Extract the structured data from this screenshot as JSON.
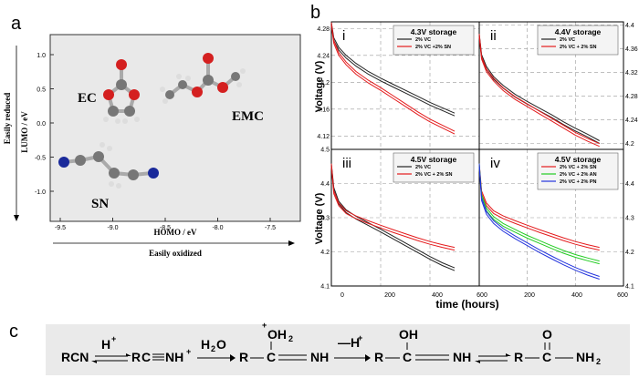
{
  "panel_a": {
    "label": "a",
    "y_axis_title": "LUMO / eV",
    "x_axis_title": "HOMO / eV",
    "y_arrow_label": "Easily reduced",
    "x_arrow_label": "Easily oxidized",
    "y_ticks": [
      "1.0",
      "0.5",
      "0.0",
      "-0.5",
      "-1.0"
    ],
    "x_ticks": [
      "-9.5",
      "-9.0",
      "-8.5",
      "-8.0",
      "-7.5"
    ],
    "molecules": [
      "EC",
      "EMC",
      "SN"
    ]
  },
  "panel_b": {
    "label": "b",
    "y_axis_title": "Voltage (V)",
    "x_axis_title": "time (hours)",
    "x_ticks": [
      "0",
      "200",
      "400",
      "600",
      "200",
      "400",
      "600"
    ]
  },
  "panel_c": {
    "label": "c",
    "scheme": {
      "rcn": "RCN",
      "h_plus": "H",
      "plus": "+",
      "minus_h_plus": "—H",
      "h2o": "H",
      "h2o_2": "2",
      "h2o_o": "O",
      "r": "R",
      "c": "C",
      "nh_plus": "NH",
      "nh": "NH",
      "oh2": "OH",
      "oh2_sub": "2",
      "oh": "OH",
      "o": "O",
      "nh2": "NH",
      "nh2_sub": "2"
    }
  },
  "chart_data": [
    {
      "type": "line",
      "panel": "i",
      "title": "4.3V storage",
      "xlabel": "time (hours)",
      "ylabel": "Voltage (V)",
      "xlim": [
        0,
        600
      ],
      "ylim": [
        4.1,
        4.29
      ],
      "y_ticks": [
        "4.28",
        "4.24",
        "4.2",
        "4.16",
        "4.12"
      ],
      "x": [
        0,
        10,
        30,
        60,
        100,
        150,
        200,
        250,
        300,
        350,
        400,
        450,
        500
      ],
      "series": [
        {
          "name": "2% VC",
          "color": "#222222",
          "values": [
            4.285,
            4.262,
            4.248,
            4.236,
            4.224,
            4.212,
            4.202,
            4.193,
            4.184,
            4.175,
            4.166,
            4.158,
            4.15
          ]
        },
        {
          "name": "2% VC +2% SN",
          "color": "#e41a1c",
          "values": [
            4.285,
            4.258,
            4.24,
            4.226,
            4.212,
            4.199,
            4.188,
            4.176,
            4.164,
            4.152,
            4.141,
            4.132,
            4.123
          ]
        }
      ]
    },
    {
      "type": "line",
      "panel": "ii",
      "title": "4.4V storage",
      "xlim": [
        0,
        600
      ],
      "ylim": [
        4.19,
        4.405
      ],
      "y_ticks": [
        "4.4",
        "4.36",
        "4.32",
        "4.28",
        "4.24",
        "4.2"
      ],
      "x": [
        0,
        10,
        30,
        60,
        100,
        150,
        200,
        250,
        300,
        350,
        400,
        450,
        500
      ],
      "series": [
        {
          "name": "2% VC",
          "color": "#222222",
          "values": [
            4.38,
            4.345,
            4.325,
            4.308,
            4.293,
            4.278,
            4.266,
            4.255,
            4.244,
            4.232,
            4.221,
            4.211,
            4.2
          ]
        },
        {
          "name": "2% VC + 2% SN",
          "color": "#e41a1c",
          "values": [
            4.38,
            4.342,
            4.321,
            4.305,
            4.289,
            4.274,
            4.262,
            4.25,
            4.238,
            4.226,
            4.214,
            4.204,
            4.195
          ]
        }
      ]
    },
    {
      "type": "line",
      "panel": "iii",
      "title": "4.5V storage",
      "xlim": [
        0,
        600
      ],
      "ylim": [
        4.1,
        4.5
      ],
      "y_ticks": [
        "4.5",
        "4.4",
        "4.3",
        "4.2",
        "4.1"
      ],
      "x": [
        0,
        10,
        30,
        60,
        100,
        150,
        200,
        250,
        300,
        350,
        400,
        450,
        500
      ],
      "series": [
        {
          "name": "2% VC",
          "color": "#222222",
          "values": [
            4.45,
            4.38,
            4.34,
            4.315,
            4.296,
            4.277,
            4.258,
            4.238,
            4.218,
            4.198,
            4.178,
            4.16,
            4.145
          ]
        },
        {
          "name": "2% VC + 2% SN",
          "color": "#e41a1c",
          "values": [
            4.45,
            4.37,
            4.335,
            4.312,
            4.297,
            4.283,
            4.27,
            4.257,
            4.245,
            4.233,
            4.222,
            4.213,
            4.205
          ]
        }
      ]
    },
    {
      "type": "line",
      "panel": "iv",
      "title": "4.5V storage",
      "xlim": [
        0,
        600
      ],
      "ylim": [
        4.1,
        4.5
      ],
      "y_ticks": [
        "4.4",
        "4.3",
        "4.2",
        "4.1"
      ],
      "x": [
        0,
        10,
        30,
        60,
        100,
        150,
        200,
        250,
        300,
        350,
        400,
        450,
        500
      ],
      "series": [
        {
          "name": "2% VC + 2% SN",
          "color": "#e41a1c",
          "values": [
            4.45,
            4.37,
            4.335,
            4.312,
            4.297,
            4.283,
            4.27,
            4.257,
            4.245,
            4.233,
            4.222,
            4.213,
            4.205
          ]
        },
        {
          "name": "2% VC + 2% AN",
          "color": "#22cc22",
          "values": [
            4.45,
            4.36,
            4.32,
            4.295,
            4.275,
            4.257,
            4.24,
            4.225,
            4.21,
            4.196,
            4.184,
            4.174,
            4.165
          ]
        },
        {
          "name": "2% VC + 2% PN",
          "color": "#2233dd",
          "values": [
            4.45,
            4.35,
            4.31,
            4.283,
            4.26,
            4.238,
            4.218,
            4.198,
            4.18,
            4.162,
            4.146,
            4.132,
            4.12
          ]
        }
      ]
    }
  ]
}
